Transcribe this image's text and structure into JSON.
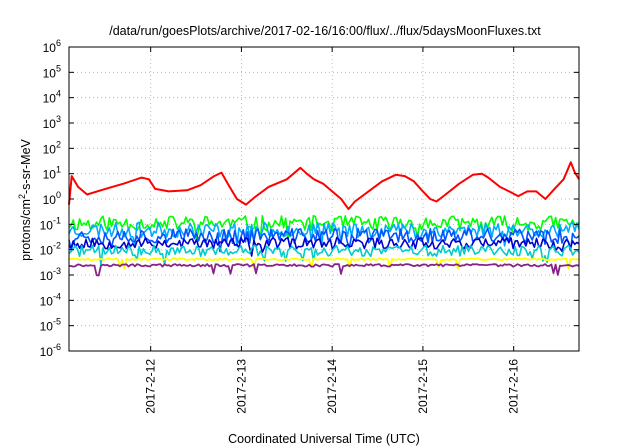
{
  "chart_data": {
    "type": "line",
    "title": "/data/run/goesPlots/archive/2017-02-16/16:00/flux/../flux/5daysMoonFluxes.txt",
    "xlabel": "Coordinated Universal Time (UTC)",
    "ylabel_main": "protons/cm",
    "ylabel_sup": "2",
    "ylabel_rest": "-s-sr-MeV",
    "y_scale": "log",
    "y_exponent_range": [
      -6,
      6
    ],
    "y_ticks": [
      {
        "base": "10",
        "exp": "6"
      },
      {
        "base": "10",
        "exp": "5"
      },
      {
        "base": "10",
        "exp": "4"
      },
      {
        "base": "10",
        "exp": "3"
      },
      {
        "base": "10",
        "exp": "2"
      },
      {
        "base": "10",
        "exp": "1"
      },
      {
        "base": "10",
        "exp": "0"
      },
      {
        "base": "10",
        "exp": "-1"
      },
      {
        "base": "10",
        "exp": "-2"
      },
      {
        "base": "10",
        "exp": "-3"
      },
      {
        "base": "10",
        "exp": "-4"
      },
      {
        "base": "10",
        "exp": "-5"
      },
      {
        "base": "10",
        "exp": "-6"
      }
    ],
    "x_range_days": [
      11.1,
      16.72
    ],
    "x_ticks": [
      {
        "day": 12,
        "label": "2017-2-12"
      },
      {
        "day": 13,
        "label": "2017-2-13"
      },
      {
        "day": 14,
        "label": "2017-2-14"
      },
      {
        "day": 15,
        "label": "2017-2-15"
      },
      {
        "day": 16,
        "label": "2017-2-16"
      }
    ],
    "grid": true,
    "series": [
      {
        "color": "#ff0000",
        "width": 2,
        "points": [
          [
            11.1,
            0.6
          ],
          [
            11.13,
            8
          ],
          [
            11.2,
            3
          ],
          [
            11.3,
            1.5
          ],
          [
            11.5,
            2.5
          ],
          [
            11.7,
            4
          ],
          [
            11.9,
            7
          ],
          [
            11.98,
            6
          ],
          [
            12.05,
            2.5
          ],
          [
            12.2,
            2
          ],
          [
            12.4,
            2.2
          ],
          [
            12.55,
            3.5
          ],
          [
            12.7,
            8
          ],
          [
            12.78,
            11
          ],
          [
            12.85,
            4
          ],
          [
            12.95,
            1
          ],
          [
            13.05,
            0.6
          ],
          [
            13.15,
            1.2
          ],
          [
            13.3,
            3
          ],
          [
            13.5,
            6
          ],
          [
            13.65,
            17
          ],
          [
            13.72,
            10
          ],
          [
            13.8,
            6
          ],
          [
            13.9,
            4
          ],
          [
            14.0,
            2
          ],
          [
            14.1,
            1
          ],
          [
            14.18,
            0.4
          ],
          [
            14.25,
            0.8
          ],
          [
            14.4,
            2
          ],
          [
            14.55,
            5
          ],
          [
            14.7,
            9
          ],
          [
            14.8,
            8
          ],
          [
            14.9,
            5
          ],
          [
            15.0,
            2
          ],
          [
            15.08,
            1
          ],
          [
            15.15,
            0.8
          ],
          [
            15.25,
            1.5
          ],
          [
            15.4,
            4
          ],
          [
            15.55,
            9
          ],
          [
            15.65,
            10
          ],
          [
            15.72,
            7
          ],
          [
            15.85,
            3
          ],
          [
            15.95,
            2
          ],
          [
            16.05,
            1.3
          ],
          [
            16.15,
            2
          ],
          [
            16.25,
            2
          ],
          [
            16.35,
            1
          ],
          [
            16.45,
            2.5
          ],
          [
            16.55,
            6
          ],
          [
            16.63,
            28
          ],
          [
            16.67,
            12
          ],
          [
            16.72,
            6
          ]
        ]
      },
      {
        "color": "#00ff00",
        "width": 1.6,
        "level": 0.11,
        "jitter": 0.3,
        "seed": 11
      },
      {
        "color": "#00aaff",
        "width": 1.6,
        "level": 0.06,
        "jitter": 0.3,
        "seed": 23
      },
      {
        "color": "#0055ff",
        "width": 1.6,
        "level": 0.035,
        "jitter": 0.3,
        "seed": 37
      },
      {
        "color": "#0000cc",
        "width": 1.6,
        "level": 0.018,
        "jitter": 0.22,
        "seed": 53
      },
      {
        "color": "#00cccc",
        "width": 1.6,
        "level": 0.009,
        "jitter": 0.22,
        "seed": 71
      },
      {
        "color": "#ffff00",
        "width": 1.8,
        "level": 0.0042,
        "jitter": 0.04,
        "seed": 89
      },
      {
        "color": "#882288",
        "width": 1.8,
        "level": 0.0024,
        "jitter": 0.05,
        "seed": 97
      }
    ]
  }
}
